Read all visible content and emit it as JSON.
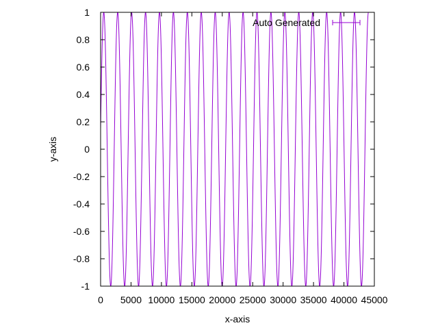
{
  "chart_data": {
    "type": "line",
    "xlabel": "x-axis",
    "ylabel": "y-axis",
    "xlim": [
      0,
      45000
    ],
    "ylim": [
      -1,
      1
    ],
    "x_ticks": [
      0,
      5000,
      10000,
      15000,
      20000,
      25000,
      30000,
      35000,
      40000,
      45000
    ],
    "x_tick_labels": [
      "0",
      "5000",
      "10000",
      "15000",
      "20000",
      "25000",
      "30000",
      "35000",
      "40000",
      "45000"
    ],
    "y_ticks": [
      -1,
      -0.8,
      -0.6,
      -0.4,
      -0.2,
      0,
      0.2,
      0.4,
      0.6,
      0.8,
      1
    ],
    "y_tick_labels": [
      "-1",
      "-0.8",
      "-0.6",
      "-0.4",
      "-0.2",
      "0",
      "0.2",
      "0.4",
      "0.6",
      "0.8",
      "1"
    ],
    "grid": false,
    "legend_position": "top-right",
    "series": [
      {
        "name": "Auto Generated",
        "color": "#9400d3",
        "function": "sin",
        "period": 2290,
        "x_start": 0,
        "x_end": 44000,
        "y_at_start": 0.15,
        "amplitude": 1
      }
    ]
  }
}
